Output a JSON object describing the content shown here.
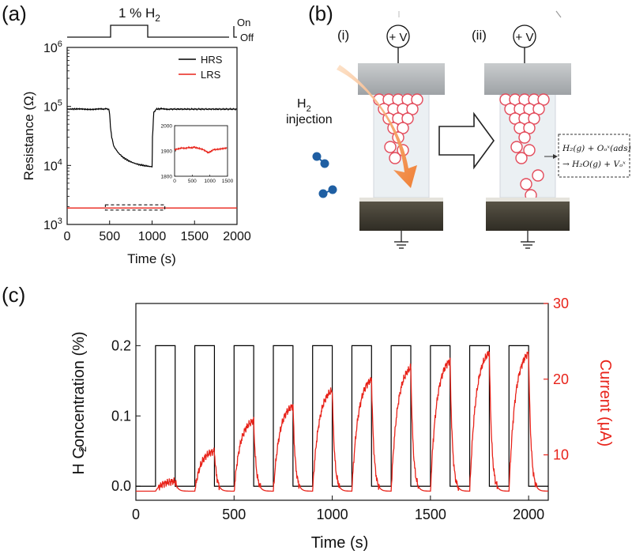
{
  "panel_a": {
    "label": "(a)",
    "pulse_label": "1 % H",
    "pulse_sub": "2",
    "on_label": "On",
    "off_label": "Off",
    "xlabel": "Time (s)",
    "ylabel": "Resistance (Ω)",
    "legend": [
      {
        "name": "HRS",
        "color": "#000000"
      },
      {
        "name": "LRS",
        "color": "#e8231a"
      }
    ]
  },
  "panel_b": {
    "label": "(b)",
    "state_i": "(i)",
    "state_ii": "(ii)",
    "voltage_label": "+ V",
    "injection_line1": "H",
    "injection_sub": "2",
    "injection_line2": "injection",
    "reaction_line1": "H₂(g) + Oₒˣ(ads)",
    "reaction_line2": "→ H₂O(g) + Vₒˣ"
  },
  "panel_c": {
    "label": "(c)",
    "xlabel": "Time (s)",
    "ylabel_left": "H  Concentration (%)",
    "ylabel_left_sub": "2",
    "ylabel_right": "Current (μA)",
    "right_color": "#e8231a"
  },
  "chart_data": [
    {
      "type": "line",
      "id": "a-main",
      "xlabel": "Time (s)",
      "ylabel": "Resistance (Ω)",
      "xlim": [
        0,
        2000
      ],
      "ylim": [
        1000,
        1000000
      ],
      "yscale": "log",
      "xticks": [
        0,
        500,
        1000,
        1500,
        2000
      ],
      "yticks": [
        {
          "v": 1000,
          "b": "10",
          "e": "3"
        },
        {
          "v": 10000,
          "b": "10",
          "e": "4"
        },
        {
          "v": 100000,
          "b": "10",
          "e": "5"
        },
        {
          "v": 1000000,
          "b": "10",
          "e": "6"
        }
      ],
      "legend": "top-right",
      "series": [
        {
          "name": "HRS",
          "color": "#000000",
          "x": [
            0,
            50,
            100,
            200,
            300,
            400,
            460,
            490,
            500,
            510,
            525,
            550,
            600,
            650,
            700,
            750,
            800,
            850,
            900,
            950,
            1000,
            1005,
            1020,
            1050,
            1100,
            1200,
            1400,
            1600,
            1800,
            2000
          ],
          "y": [
            90000,
            90000,
            91000,
            89000,
            90000,
            90000,
            91000,
            90000,
            75000,
            45000,
            30000,
            21000,
            16500,
            14000,
            12500,
            11500,
            10800,
            10300,
            10000,
            9700,
            9500,
            30000,
            80000,
            90000,
            91000,
            90000,
            90000,
            90000,
            90000,
            90000
          ]
        },
        {
          "name": "LRS",
          "color": "#e8231a",
          "x": [
            0,
            500,
            1000,
            1500,
            2000
          ],
          "y": [
            1900,
            1900,
            1900,
            1900,
            1900
          ]
        }
      ],
      "pulse": {
        "off_before": 500,
        "on_start": 500,
        "on_end": 1000
      },
      "annotation": {
        "type": "dashed-box",
        "x": [
          450,
          1150
        ],
        "y": [
          1750,
          2150
        ]
      }
    },
    {
      "type": "line",
      "id": "a-inset",
      "xlim": [
        0,
        1500
      ],
      "ylim": [
        1800,
        2000
      ],
      "xticks": [
        0,
        500,
        1000,
        1500
      ],
      "yticks": [
        1800,
        1900,
        2000
      ],
      "series": [
        {
          "name": "",
          "color": "#e8231a",
          "x": [
            0,
            100,
            200,
            300,
            400,
            500,
            550,
            600,
            700,
            800,
            900,
            950,
            1000,
            1050,
            1100,
            1200,
            1300,
            1400,
            1500
          ],
          "y": [
            1905,
            1908,
            1912,
            1910,
            1914,
            1912,
            1916,
            1913,
            1910,
            1906,
            1898,
            1893,
            1896,
            1900,
            1905,
            1906,
            1908,
            1910,
            1912
          ]
        }
      ]
    },
    {
      "type": "line",
      "id": "c",
      "xlabel": "Time (s)",
      "ylabel": "H2 Concentration (%)",
      "ylabel_right": "Current (μA)",
      "xlim": [
        0,
        2100
      ],
      "ylim": [
        -0.02,
        0.26
      ],
      "ylim_right": [
        4,
        30
      ],
      "xticks": [
        0,
        500,
        1000,
        1500,
        2000
      ],
      "yticks": [
        0.0,
        0.1,
        0.2
      ],
      "yticks_right": [
        10,
        20,
        30
      ],
      "pulses": {
        "level_on": 0.2,
        "level_off": 0.0,
        "on_starts": [
          100,
          300,
          500,
          700,
          900,
          1100,
          1300,
          1500,
          1700,
          1900
        ],
        "on_duration": 100
      },
      "current_peaks": [
        6.5,
        10.5,
        14.5,
        16.5,
        18.5,
        20.0,
        21.5,
        22.5,
        23.5,
        23.5
      ],
      "current_baseline": 5.2,
      "series": [
        {
          "name": "",
          "color": "#000000",
          "axis": "left"
        },
        {
          "name": "",
          "color": "#e8231a",
          "axis": "right"
        }
      ]
    }
  ]
}
